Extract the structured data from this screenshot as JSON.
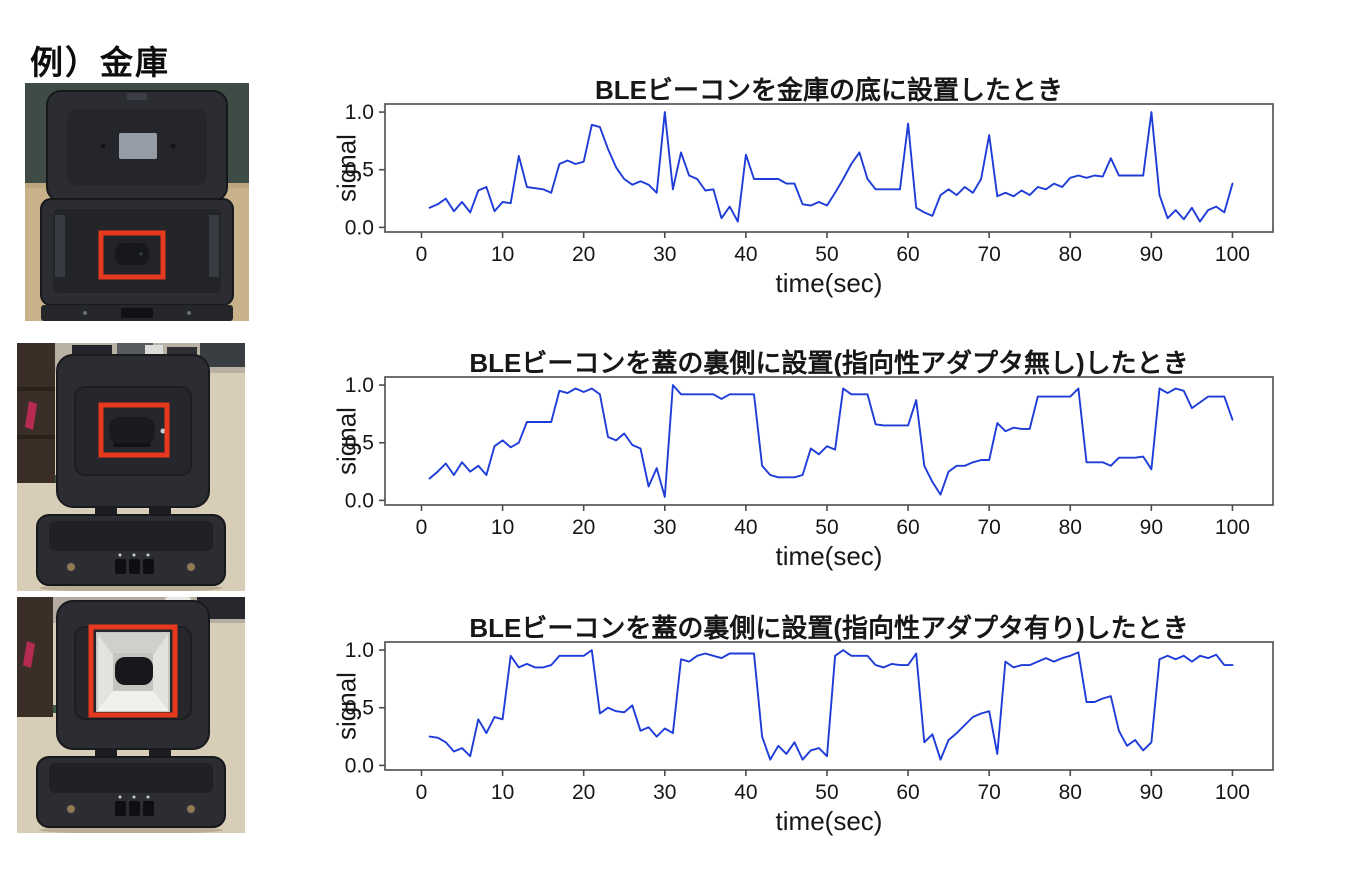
{
  "title": "例）金庫",
  "colors": {
    "line": "#1e3cd8",
    "highlight_box": "#e8381e",
    "axis_frame": "#4d4d4d",
    "text": "#171717"
  },
  "photos": [
    {
      "id": "beacon-on-safe-bottom"
    },
    {
      "id": "beacon-inside-lid-no-adapter"
    },
    {
      "id": "beacon-inside-lid-with-adapter"
    }
  ],
  "chart_data": [
    {
      "type": "line",
      "title": "BLEビーコンを金庫の底に設置したとき",
      "xlabel": "time(sec)",
      "ylabel": "signal",
      "x_ticks": [
        0,
        10,
        20,
        30,
        40,
        50,
        60,
        70,
        80,
        90,
        100
      ],
      "y_ticks": [
        0.0,
        0.5,
        1.0
      ],
      "y_tick_labels": [
        "0.0",
        "0.5",
        "1.0"
      ],
      "xlim": [
        -4.5,
        105
      ],
      "ylim": [
        -0.04,
        1.07
      ],
      "x_start": 1,
      "grid": false,
      "values": [
        0.17,
        0.2,
        0.25,
        0.14,
        0.22,
        0.13,
        0.32,
        0.35,
        0.14,
        0.22,
        0.21,
        0.62,
        0.35,
        0.34,
        0.33,
        0.3,
        0.55,
        0.58,
        0.55,
        0.57,
        0.89,
        0.87,
        0.68,
        0.52,
        0.42,
        0.37,
        0.4,
        0.37,
        0.3,
        1.0,
        0.33,
        0.65,
        0.45,
        0.42,
        0.32,
        0.33,
        0.08,
        0.18,
        0.05,
        0.63,
        0.42,
        0.42,
        0.42,
        0.42,
        0.38,
        0.38,
        0.2,
        0.19,
        0.22,
        0.19,
        0.3,
        0.42,
        0.55,
        0.65,
        0.42,
        0.33,
        0.33,
        0.33,
        0.33,
        0.9,
        0.17,
        0.13,
        0.1,
        0.28,
        0.33,
        0.28,
        0.35,
        0.3,
        0.42,
        0.8,
        0.27,
        0.3,
        0.27,
        0.32,
        0.28,
        0.35,
        0.33,
        0.38,
        0.35,
        0.43,
        0.45,
        0.43,
        0.45,
        0.44,
        0.6,
        0.45,
        0.45,
        0.45,
        0.45,
        1.0,
        0.28,
        0.08,
        0.15,
        0.07,
        0.17,
        0.05,
        0.15,
        0.18,
        0.13,
        0.38
      ]
    },
    {
      "type": "line",
      "title": "BLEビーコンを蓋の裏側に設置(指向性アダプタ無し)したとき",
      "xlabel": "time(sec)",
      "ylabel": "signal",
      "x_ticks": [
        0,
        10,
        20,
        30,
        40,
        50,
        60,
        70,
        80,
        90,
        100
      ],
      "y_ticks": [
        0.0,
        0.5,
        1.0
      ],
      "y_tick_labels": [
        "0.0",
        "0.5",
        "1.0"
      ],
      "xlim": [
        -4.5,
        105
      ],
      "ylim": [
        -0.04,
        1.07
      ],
      "x_start": 1,
      "grid": false,
      "values": [
        0.19,
        0.25,
        0.32,
        0.22,
        0.33,
        0.25,
        0.3,
        0.22,
        0.47,
        0.52,
        0.46,
        0.5,
        0.68,
        0.68,
        0.68,
        0.68,
        0.95,
        0.93,
        0.97,
        0.94,
        0.97,
        0.92,
        0.55,
        0.52,
        0.58,
        0.48,
        0.45,
        0.12,
        0.28,
        0.03,
        1.0,
        0.92,
        0.92,
        0.92,
        0.92,
        0.92,
        0.88,
        0.92,
        0.92,
        0.92,
        0.92,
        0.3,
        0.22,
        0.2,
        0.2,
        0.2,
        0.22,
        0.45,
        0.4,
        0.47,
        0.44,
        0.97,
        0.92,
        0.92,
        0.92,
        0.66,
        0.65,
        0.65,
        0.65,
        0.65,
        0.87,
        0.3,
        0.16,
        0.05,
        0.25,
        0.3,
        0.3,
        0.33,
        0.35,
        0.35,
        0.67,
        0.6,
        0.63,
        0.62,
        0.62,
        0.9,
        0.9,
        0.9,
        0.9,
        0.9,
        0.97,
        0.33,
        0.33,
        0.33,
        0.3,
        0.37,
        0.37,
        0.37,
        0.38,
        0.27,
        0.97,
        0.93,
        0.97,
        0.95,
        0.8,
        0.85,
        0.9,
        0.9,
        0.9,
        0.7
      ]
    },
    {
      "type": "line",
      "title": "BLEビーコンを蓋の裏側に設置(指向性アダプタ有り)したとき",
      "xlabel": "time(sec)",
      "ylabel": "signal",
      "x_ticks": [
        0,
        10,
        20,
        30,
        40,
        50,
        60,
        70,
        80,
        90,
        100
      ],
      "y_ticks": [
        0.0,
        0.5,
        1.0
      ],
      "y_tick_labels": [
        "0.0",
        "0.5",
        "1.0"
      ],
      "xlim": [
        -4.5,
        105
      ],
      "ylim": [
        -0.04,
        1.07
      ],
      "x_start": 1,
      "grid": false,
      "values": [
        0.25,
        0.24,
        0.2,
        0.12,
        0.15,
        0.08,
        0.4,
        0.28,
        0.42,
        0.4,
        0.95,
        0.85,
        0.88,
        0.85,
        0.85,
        0.87,
        0.95,
        0.95,
        0.95,
        0.95,
        1.0,
        0.45,
        0.5,
        0.47,
        0.46,
        0.52,
        0.3,
        0.33,
        0.25,
        0.32,
        0.28,
        0.92,
        0.9,
        0.95,
        0.97,
        0.95,
        0.93,
        0.97,
        0.97,
        0.97,
        0.97,
        0.25,
        0.05,
        0.17,
        0.1,
        0.2,
        0.05,
        0.13,
        0.15,
        0.08,
        0.95,
        1.0,
        0.95,
        0.95,
        0.95,
        0.87,
        0.85,
        0.88,
        0.87,
        0.87,
        0.97,
        0.2,
        0.27,
        0.05,
        0.22,
        0.28,
        0.35,
        0.42,
        0.45,
        0.47,
        0.1,
        0.9,
        0.85,
        0.87,
        0.87,
        0.9,
        0.93,
        0.9,
        0.93,
        0.95,
        0.98,
        0.55,
        0.55,
        0.58,
        0.6,
        0.3,
        0.17,
        0.22,
        0.13,
        0.2,
        0.92,
        0.95,
        0.92,
        0.95,
        0.9,
        0.95,
        0.93,
        0.96,
        0.87,
        0.87
      ]
    }
  ]
}
